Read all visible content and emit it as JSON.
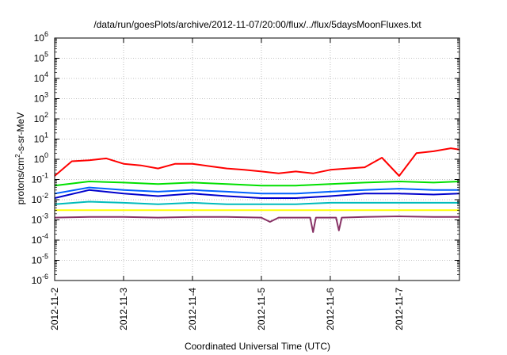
{
  "chart_data": {
    "type": "line",
    "title": "/data/run/goesPlots/archive/2012-11-07/20:00/flux/../flux/5daysMoonFluxes.txt",
    "xlabel": "Coordinated Universal Time (UTC)",
    "ylabel_parts": {
      "before": "protons/cm",
      "sup": "2",
      "after": "-s-sr-MeV"
    },
    "x_range": [
      "2012-11-02",
      "2012-11-07 21:00"
    ],
    "x_ticks": [
      "2012-11-2",
      "2012-11-3",
      "2012-11-4",
      "2012-11-5",
      "2012-11-6",
      "2012-11-7"
    ],
    "y_scale": "log",
    "ylim": [
      1e-06,
      1000000
    ],
    "y_ticks": [
      {
        "base": "10",
        "exp": "-6"
      },
      {
        "base": "10",
        "exp": "-5"
      },
      {
        "base": "10",
        "exp": "-4"
      },
      {
        "base": "10",
        "exp": "-3"
      },
      {
        "base": "10",
        "exp": "-2"
      },
      {
        "base": "10",
        "exp": "-1"
      },
      {
        "base": "10",
        "exp": "0"
      },
      {
        "base": "10",
        "exp": "1"
      },
      {
        "base": "10",
        "exp": "2"
      },
      {
        "base": "10",
        "exp": "3"
      },
      {
        "base": "10",
        "exp": "4"
      },
      {
        "base": "10",
        "exp": "5"
      },
      {
        "base": "10",
        "exp": "6"
      }
    ],
    "grid": true,
    "series": [
      {
        "color": "#ff0000",
        "x": [
          "2012-11-02 00:00",
          "2012-11-02 06:00",
          "2012-11-02 12:00",
          "2012-11-02 18:00",
          "2012-11-03 00:00",
          "2012-11-03 06:00",
          "2012-11-03 12:00",
          "2012-11-03 18:00",
          "2012-11-04 00:00",
          "2012-11-04 06:00",
          "2012-11-04 12:00",
          "2012-11-04 18:00",
          "2012-11-05 00:00",
          "2012-11-05 06:00",
          "2012-11-05 12:00",
          "2012-11-05 18:00",
          "2012-11-06 00:00",
          "2012-11-06 06:00",
          "2012-11-06 12:00",
          "2012-11-06 18:00",
          "2012-11-07 00:00",
          "2012-11-07 06:00",
          "2012-11-07 12:00",
          "2012-11-07 18:00",
          "2012-11-07 21:00"
        ],
        "values": [
          0.15,
          0.8,
          0.9,
          1.1,
          0.6,
          0.5,
          0.35,
          0.6,
          0.6,
          0.45,
          0.35,
          0.3,
          0.25,
          0.2,
          0.25,
          0.2,
          0.3,
          0.35,
          0.4,
          1.2,
          0.15,
          2.0,
          2.5,
          3.5,
          3.0
        ]
      },
      {
        "color": "#00e000",
        "x": [
          "2012-11-02 00:00",
          "2012-11-02 12:00",
          "2012-11-03 00:00",
          "2012-11-03 12:00",
          "2012-11-04 00:00",
          "2012-11-04 12:00",
          "2012-11-05 00:00",
          "2012-11-05 12:00",
          "2012-11-06 00:00",
          "2012-11-06 12:00",
          "2012-11-07 00:00",
          "2012-11-07 12:00",
          "2012-11-07 21:00"
        ],
        "values": [
          0.05,
          0.08,
          0.07,
          0.06,
          0.07,
          0.06,
          0.05,
          0.05,
          0.06,
          0.07,
          0.08,
          0.07,
          0.08
        ]
      },
      {
        "color": "#0000cc",
        "x": [
          "2012-11-02 00:00",
          "2012-11-02 12:00",
          "2012-11-03 00:00",
          "2012-11-03 12:00",
          "2012-11-04 00:00",
          "2012-11-04 12:00",
          "2012-11-05 00:00",
          "2012-11-05 12:00",
          "2012-11-06 00:00",
          "2012-11-06 12:00",
          "2012-11-07 00:00",
          "2012-11-07 12:00",
          "2012-11-07 21:00"
        ],
        "values": [
          0.012,
          0.03,
          0.02,
          0.015,
          0.02,
          0.015,
          0.012,
          0.012,
          0.015,
          0.02,
          0.02,
          0.018,
          0.02
        ]
      },
      {
        "color": "#0060ff",
        "x": [
          "2012-11-02 00:00",
          "2012-11-02 12:00",
          "2012-11-03 00:00",
          "2012-11-03 12:00",
          "2012-11-04 00:00",
          "2012-11-04 12:00",
          "2012-11-05 00:00",
          "2012-11-05 12:00",
          "2012-11-06 00:00",
          "2012-11-06 12:00",
          "2012-11-07 00:00",
          "2012-11-07 12:00",
          "2012-11-07 21:00"
        ],
        "values": [
          0.02,
          0.04,
          0.03,
          0.025,
          0.03,
          0.025,
          0.02,
          0.02,
          0.025,
          0.03,
          0.035,
          0.03,
          0.03
        ]
      },
      {
        "color": "#00bbbb",
        "x": [
          "2012-11-02 00:00",
          "2012-11-02 12:00",
          "2012-11-03 00:00",
          "2012-11-03 12:00",
          "2012-11-04 00:00",
          "2012-11-04 12:00",
          "2012-11-05 00:00",
          "2012-11-05 12:00",
          "2012-11-06 00:00",
          "2012-11-06 12:00",
          "2012-11-07 00:00",
          "2012-11-07 12:00",
          "2012-11-07 21:00"
        ],
        "values": [
          0.006,
          0.008,
          0.007,
          0.006,
          0.007,
          0.006,
          0.006,
          0.006,
          0.007,
          0.007,
          0.007,
          0.007,
          0.007
        ]
      },
      {
        "color": "#ffff00",
        "x": [
          "2012-11-02 00:00",
          "2012-11-02 12:00",
          "2012-11-03 00:00",
          "2012-11-03 12:00",
          "2012-11-04 00:00",
          "2012-11-04 12:00",
          "2012-11-05 00:00",
          "2012-11-05 12:00",
          "2012-11-06 00:00",
          "2012-11-06 12:00",
          "2012-11-07 00:00",
          "2012-11-07 12:00",
          "2012-11-07 21:00"
        ],
        "values": [
          0.003,
          0.003,
          0.003,
          0.003,
          0.003,
          0.003,
          0.003,
          0.003,
          0.003,
          0.003,
          0.003,
          0.003,
          0.003
        ]
      },
      {
        "color": "#883366",
        "x": [
          "2012-11-02 00:00",
          "2012-11-02 12:00",
          "2012-11-03 00:00",
          "2012-11-03 12:00",
          "2012-11-04 00:00",
          "2012-11-04 12:00",
          "2012-11-05 00:00",
          "2012-11-05 03:00",
          "2012-11-05 06:00",
          "2012-11-05 12:00",
          "2012-11-05 17:00",
          "2012-11-05 18:00",
          "2012-11-05 19:00",
          "2012-11-06 00:00",
          "2012-11-06 02:00",
          "2012-11-06 03:00",
          "2012-11-06 04:00",
          "2012-11-06 12:00",
          "2012-11-07 00:00",
          "2012-11-07 12:00",
          "2012-11-07 21:00"
        ],
        "values": [
          0.0013,
          0.0014,
          0.0014,
          0.0013,
          0.0014,
          0.0014,
          0.0013,
          0.0008,
          0.0013,
          0.0013,
          0.0013,
          0.00025,
          0.0013,
          0.0013,
          0.0013,
          0.0003,
          0.0013,
          0.0014,
          0.0015,
          0.0014,
          0.0014
        ]
      }
    ]
  }
}
